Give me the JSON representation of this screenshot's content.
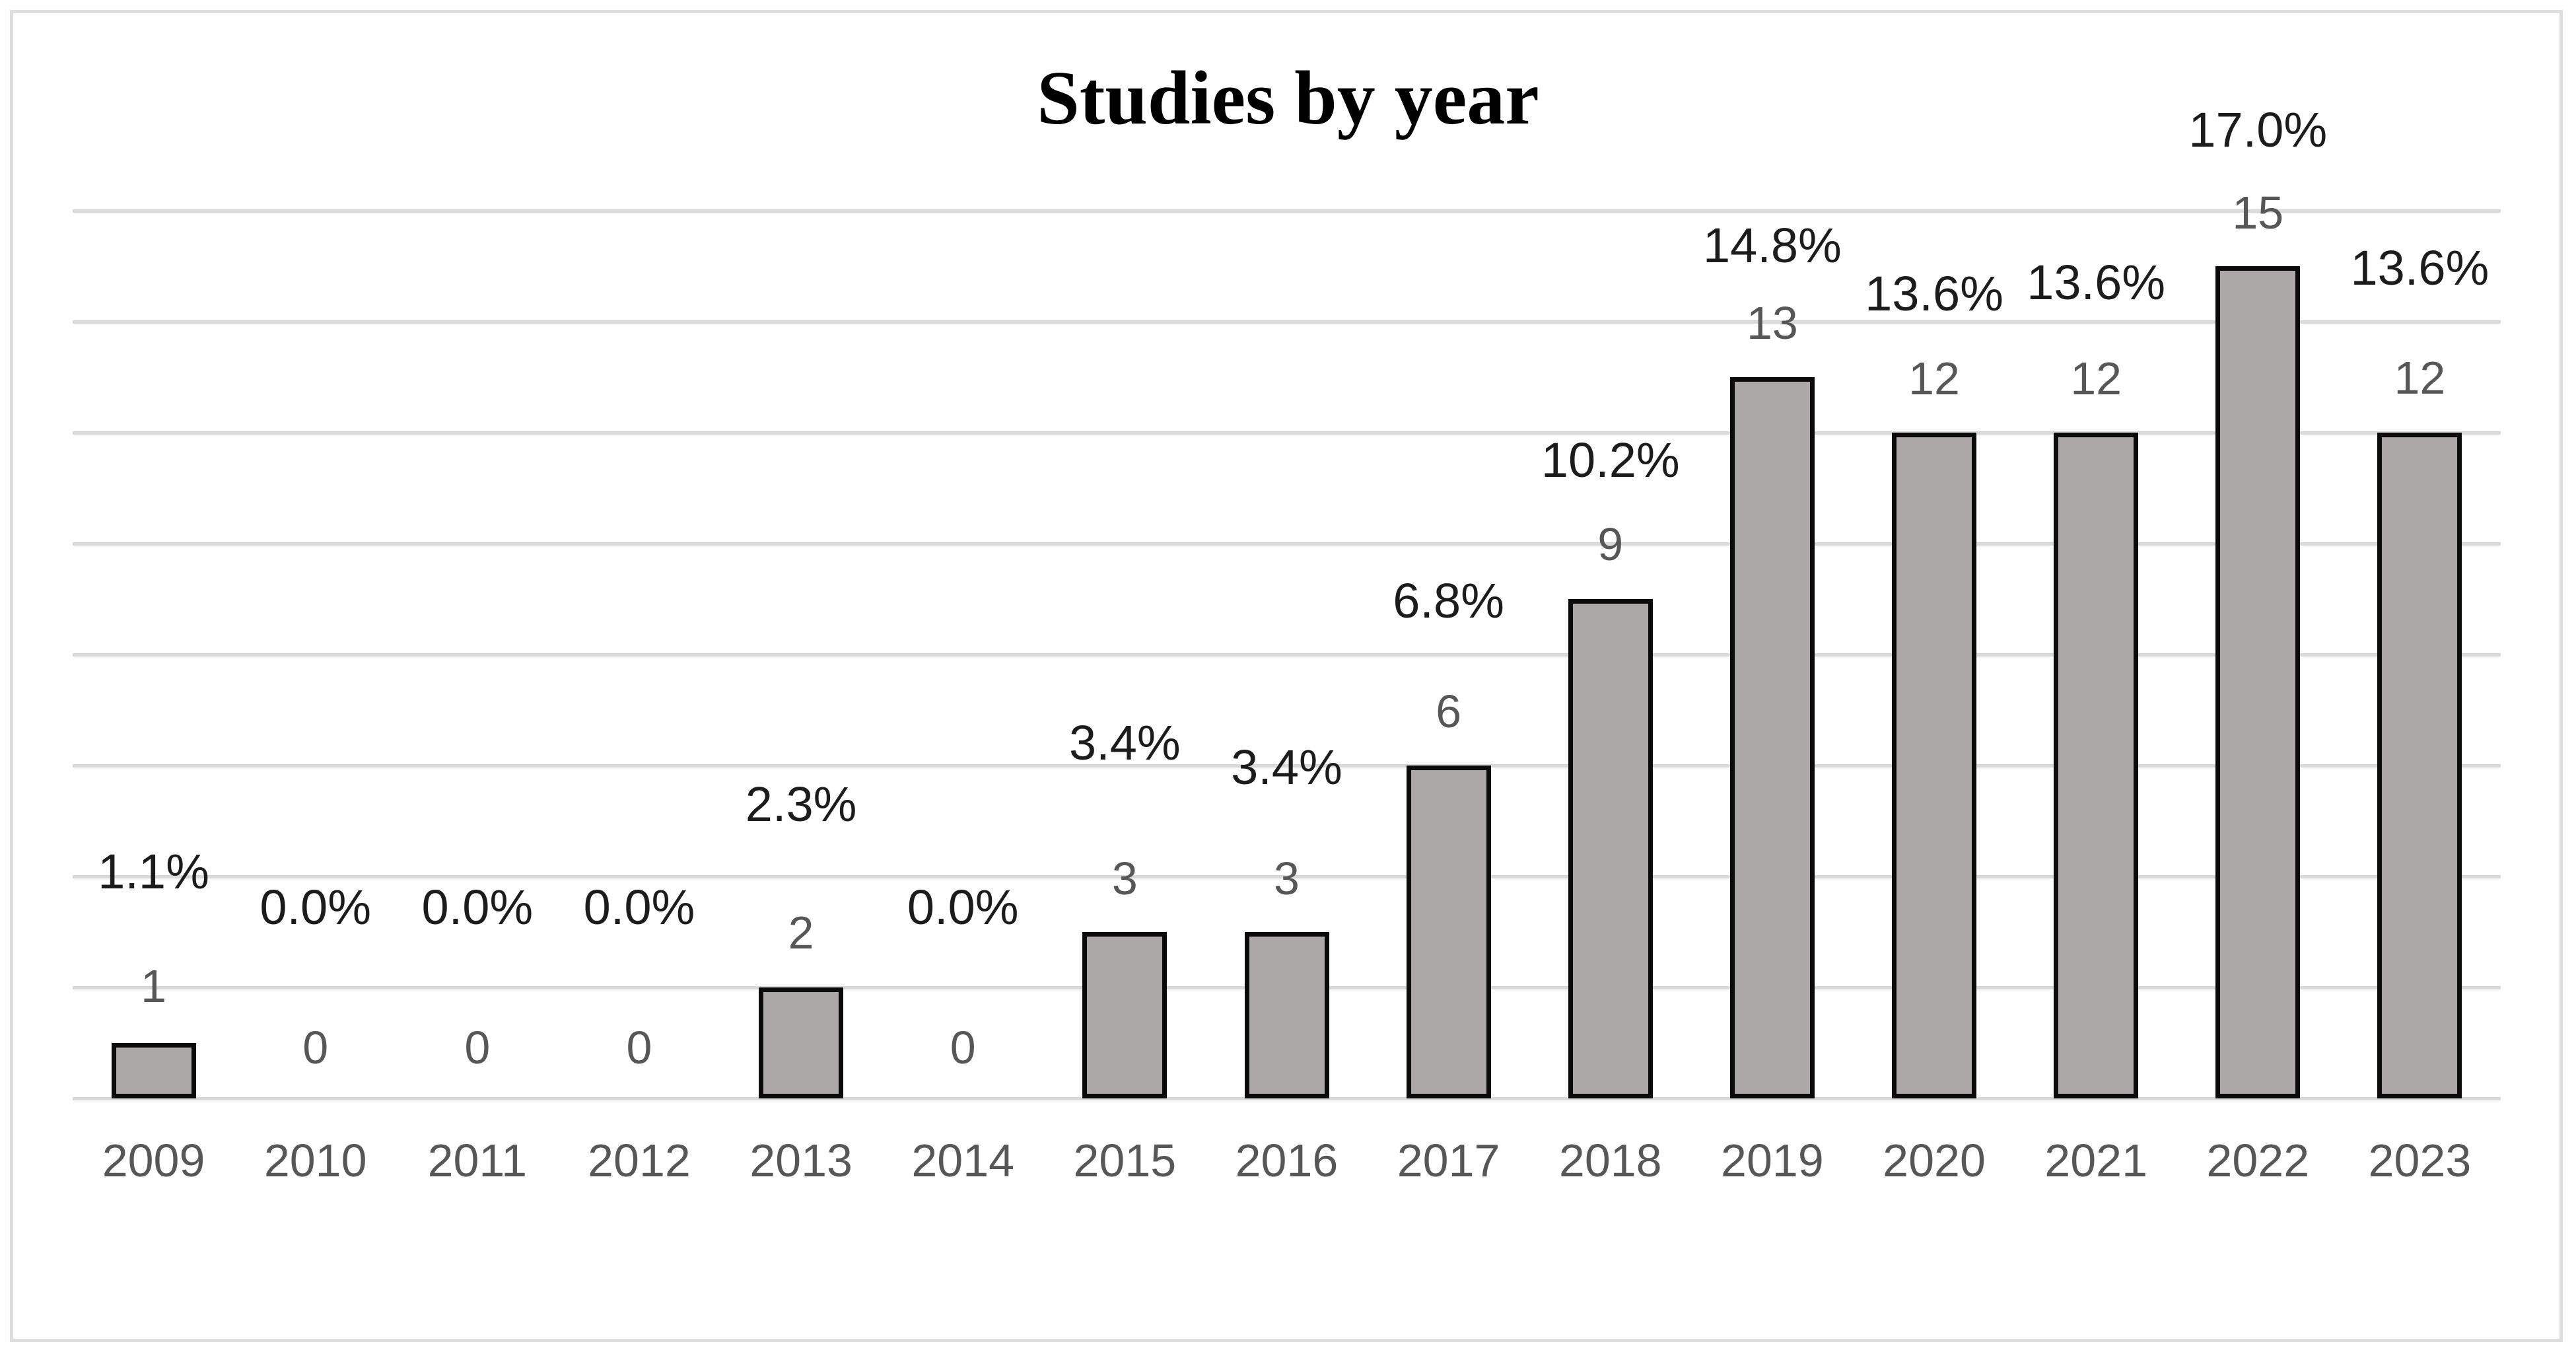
{
  "chart_data": {
    "type": "bar",
    "title": "Studies by year",
    "categories": [
      "2009",
      "2010",
      "2011",
      "2012",
      "2013",
      "2014",
      "2015",
      "2016",
      "2017",
      "2018",
      "2019",
      "2020",
      "2021",
      "2022",
      "2023"
    ],
    "values": [
      1,
      0,
      0,
      0,
      2,
      0,
      3,
      3,
      6,
      9,
      13,
      12,
      12,
      15,
      12
    ],
    "count_labels": [
      "1",
      "0",
      "0",
      "0",
      "2",
      "0",
      "3",
      "3",
      "6",
      "9",
      "13",
      "12",
      "12",
      "15",
      "12"
    ],
    "pct_labels": [
      "1.1%",
      "0.0%",
      "0.0%",
      "0.0%",
      "2.3%",
      "0.0%",
      "3.4%",
      "3.4%",
      "6.8%",
      "10.2%",
      "14.8%",
      "13.6%",
      "13.6%",
      "17.0%",
      "13.6%"
    ],
    "xlabel": "",
    "ylabel": "",
    "ylim": [
      0,
      16
    ],
    "grid_step": 2,
    "grid": true,
    "legend": false,
    "y_tick_labels_visible": false,
    "layout_hints": {
      "count_label_center_y": [
        1493,
        1586,
        1586,
        1586,
        1412,
        1586,
        1330,
        1330,
        1077,
        824,
        489,
        573,
        573,
        322,
        572
      ],
      "pct_label_center_y": [
        1320,
        1374,
        1374,
        1374,
        1218,
        1374,
        1125,
        1162,
        910,
        697,
        372,
        445,
        428,
        197,
        406
      ],
      "year_label_center_y": 1757
    },
    "colors": {
      "background": "#FFFFFF",
      "bar_fill": "#ACA8A7",
      "bar_border": "#0B0B0B",
      "gridline": "#D9D9D9",
      "figure_border": "#DEDEDE",
      "pct_label": "#1C1C1C",
      "count_label": "#575757",
      "year_label": "#575757",
      "title": "#000000"
    }
  }
}
